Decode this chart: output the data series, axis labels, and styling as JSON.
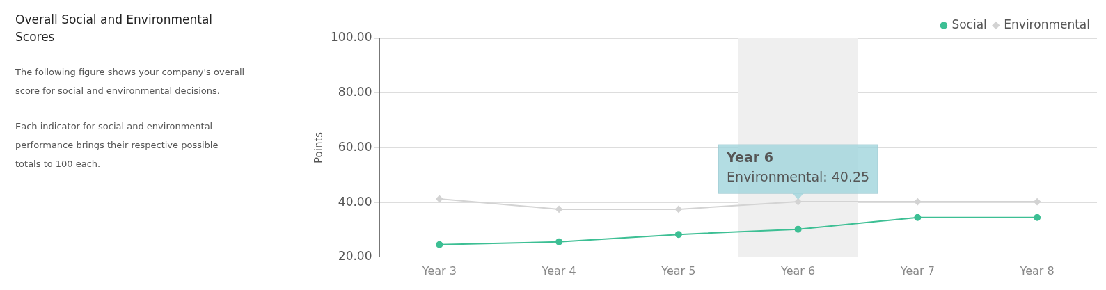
{
  "chart_data": {
    "type": "line",
    "title": "Overall Social and Environmental Scores",
    "subtitle": "The following figure shows your company's overall score for social and environmental decisions.",
    "annotations": [
      "Each indicator for social and environmental performance brings their respective possible totals to 100 each.",
      {
        "text": "Year 6\nEnvironmental: 40.25",
        "x": "Year 6",
        "y": 40.25
      }
    ],
    "ylabel": "Points",
    "categories": [
      "Year 3",
      "Year 4",
      "Year 5",
      "Year 6",
      "Year 7",
      "Year 8"
    ],
    "series": [
      {
        "name": "Social",
        "color": "#3dbf94",
        "marker": "circle",
        "values": [
          24.6,
          25.6,
          28.3,
          30.2,
          34.5,
          34.5
        ]
      },
      {
        "name": "Environmental",
        "color": "#d3d3d3",
        "marker": "diamond",
        "values": [
          41.3,
          37.5,
          37.5,
          40.25,
          40.25,
          40.25
        ]
      }
    ],
    "bands": [
      {
        "axis": "x",
        "from": "Year 6",
        "to": "Year 6",
        "color": "#efefef"
      }
    ],
    "ylim": [
      20,
      100
    ],
    "yticks": [
      {
        "value": 20,
        "label": "20.00"
      },
      {
        "value": 40,
        "label": "40.00"
      },
      {
        "value": 60,
        "label": "60.00"
      },
      {
        "value": 80,
        "label": "80.00"
      },
      {
        "value": 100,
        "label": "100.00"
      }
    ],
    "grid": "y",
    "legend": "top right"
  }
}
